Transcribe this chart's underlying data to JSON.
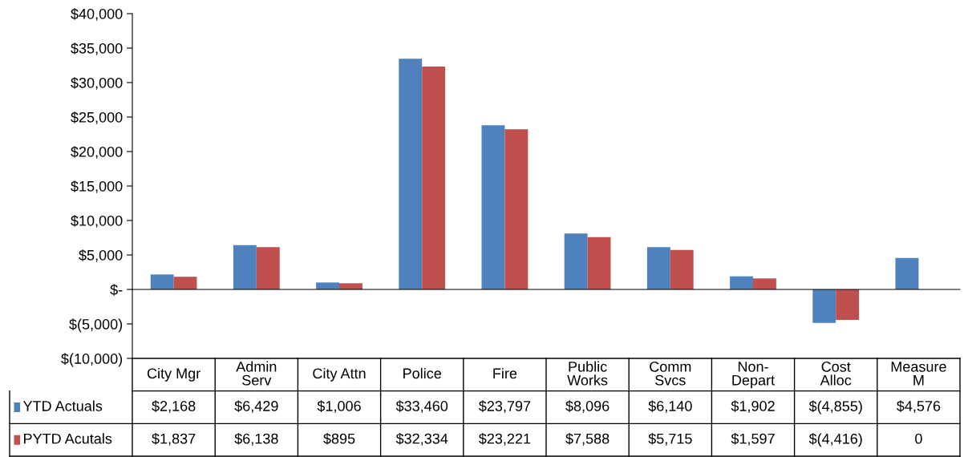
{
  "chart_data": {
    "type": "bar",
    "categories": [
      "City Mgr",
      "Admin\nServ",
      "City Attn",
      "Police",
      "Fire",
      "Public\nWorks",
      "Comm\nSvcs",
      "Non-\nDepart",
      "Cost\nAlloc",
      "Measure\nM"
    ],
    "series": [
      {
        "name": "YTD Actuals",
        "color": "#4f81bd",
        "values": [
          2168,
          6429,
          1006,
          33460,
          23797,
          8096,
          6140,
          1902,
          -4855,
          4576
        ],
        "value_labels": [
          "$2,168",
          "$6,429",
          "$1,006",
          "$33,460",
          "$23,797",
          "$8,096",
          "$6,140",
          "$1,902",
          "$(4,855)",
          "$4,576"
        ]
      },
      {
        "name": "PYTD Acutals",
        "color": "#c0504d",
        "values": [
          1837,
          6138,
          895,
          32334,
          23221,
          7588,
          5715,
          1597,
          -4416,
          0
        ],
        "value_labels": [
          "$1,837",
          "$6,138",
          "$895",
          "$32,334",
          "$23,221",
          "$7,588",
          "$5,715",
          "$1,597",
          "$(4,416)",
          "0"
        ]
      }
    ],
    "ylim": [
      -10000,
      40000
    ],
    "yticks": [
      {
        "value": -10000,
        "label": "$(10,000)"
      },
      {
        "value": -5000,
        "label": "$(5,000)"
      },
      {
        "value": 0,
        "label": "$-"
      },
      {
        "value": 5000,
        "label": "$5,000"
      },
      {
        "value": 10000,
        "label": "$10,000"
      },
      {
        "value": 15000,
        "label": "$15,000"
      },
      {
        "value": 20000,
        "label": "$20,000"
      },
      {
        "value": 25000,
        "label": "$25,000"
      },
      {
        "value": 30000,
        "label": "$30,000"
      },
      {
        "value": 35000,
        "label": "$35,000"
      },
      {
        "value": 40000,
        "label": "$40,000"
      }
    ],
    "legend": "bottom left"
  }
}
